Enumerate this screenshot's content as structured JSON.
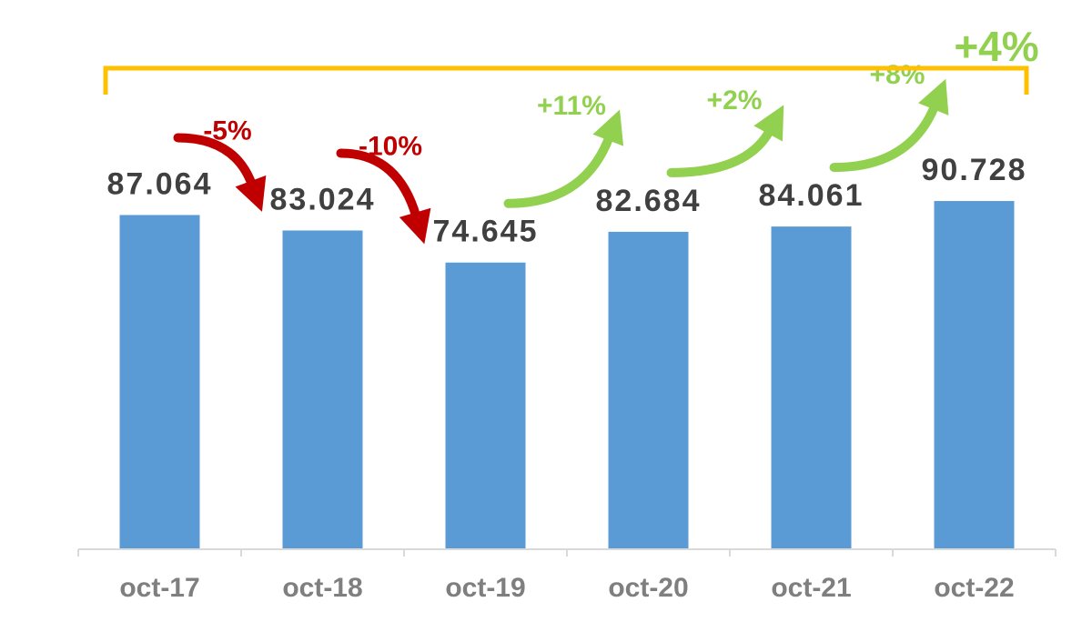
{
  "chart_data": {
    "type": "bar",
    "categories": [
      "oct-17",
      "oct-18",
      "oct-19",
      "oct-20",
      "oct-21",
      "oct-22"
    ],
    "values": [
      87.064,
      83.024,
      74.645,
      82.684,
      84.061,
      90.728
    ],
    "color": "#5b9bd5",
    "ylim": [
      0,
      100
    ],
    "changes": [
      {
        "text": "-5%",
        "color": "#c00000"
      },
      {
        "text": "-10%",
        "color": "#c00000"
      },
      {
        "text": "+11%",
        "color": "#92d050"
      },
      {
        "text": "+2%",
        "color": "#92d050"
      },
      {
        "text": "+8%",
        "color": "#92d050"
      }
    ],
    "total_change": {
      "text": "+4%",
      "color": "#92d050",
      "bracket_color": "#ffc000"
    }
  }
}
